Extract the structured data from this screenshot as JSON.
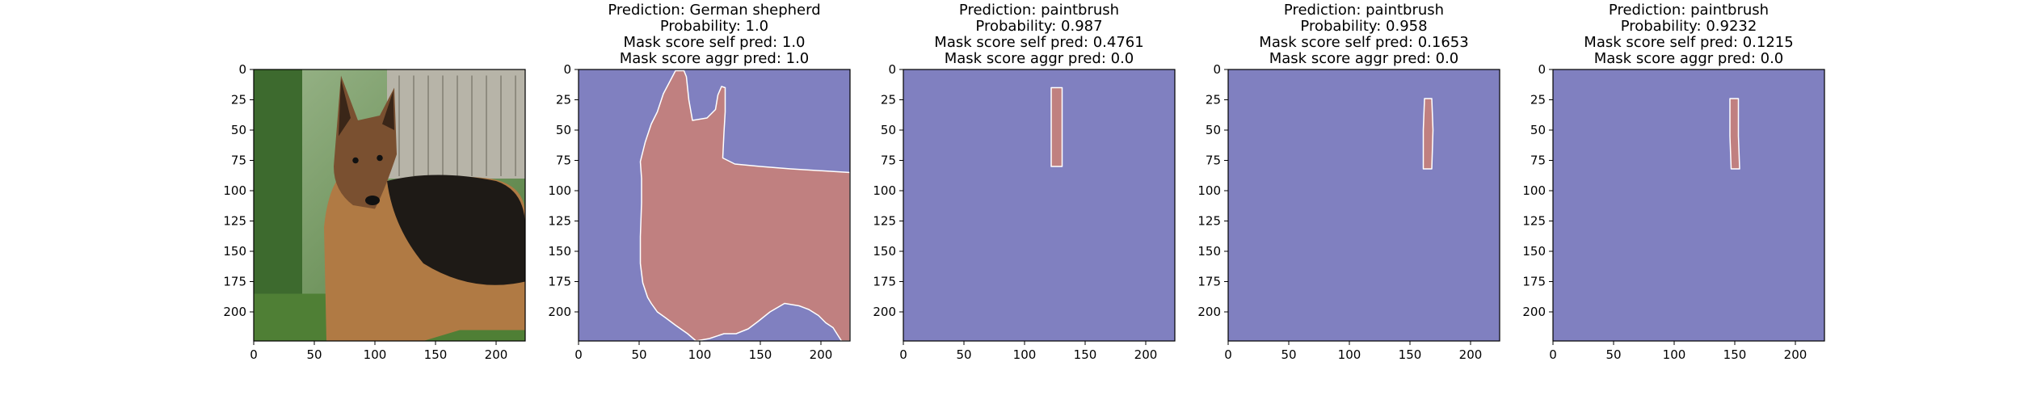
{
  "chart_data": [
    {
      "type": "image",
      "image_content": "dog-photo",
      "title_lines": [],
      "xlim": [
        0,
        224
      ],
      "ylim": [
        224,
        0
      ],
      "xticks": [
        "0",
        "50",
        "100",
        "150",
        "200"
      ],
      "yticks": [
        "0",
        "25",
        "50",
        "75",
        "100",
        "125",
        "150",
        "175",
        "200"
      ]
    },
    {
      "type": "heatmap",
      "title_lines": [
        "Prediction: German shepherd",
        "Probability: 1.0",
        "Mask score self pred: 1.0",
        "Mask score aggr pred: 1.0"
      ],
      "xlim": [
        0,
        224
      ],
      "ylim": [
        224,
        0
      ],
      "xticks": [
        "0",
        "50",
        "100",
        "150",
        "200"
      ],
      "yticks": [
        "0",
        "25",
        "50",
        "75",
        "100",
        "125",
        "150",
        "175",
        "200"
      ],
      "mask_polygon": [
        [
          80,
          1
        ],
        [
          87,
          1
        ],
        [
          89,
          6
        ],
        [
          91,
          25
        ],
        [
          94,
          42
        ],
        [
          106,
          40
        ],
        [
          113,
          33
        ],
        [
          115,
          21
        ],
        [
          118,
          14
        ],
        [
          121,
          15
        ],
        [
          121,
          35
        ],
        [
          120,
          52
        ],
        [
          119,
          73
        ],
        [
          129,
          78
        ],
        [
          150,
          80
        ],
        [
          175,
          82
        ],
        [
          224,
          85
        ],
        [
          224,
          224
        ],
        [
          217,
          224
        ],
        [
          210,
          213
        ],
        [
          204,
          209
        ],
        [
          198,
          203
        ],
        [
          190,
          198
        ],
        [
          182,
          195
        ],
        [
          170,
          193
        ],
        [
          158,
          200
        ],
        [
          148,
          208
        ],
        [
          140,
          214
        ],
        [
          130,
          218
        ],
        [
          120,
          218
        ],
        [
          108,
          222
        ],
        [
          97,
          224
        ],
        [
          90,
          218
        ],
        [
          80,
          211
        ],
        [
          72,
          205
        ],
        [
          65,
          200
        ],
        [
          60,
          193
        ],
        [
          57,
          188
        ],
        [
          53,
          176
        ],
        [
          51,
          160
        ],
        [
          51,
          138
        ],
        [
          52,
          110
        ],
        [
          52,
          90
        ],
        [
          51,
          76
        ],
        [
          55,
          60
        ],
        [
          60,
          45
        ],
        [
          65,
          35
        ],
        [
          70,
          20
        ]
      ],
      "colors": {
        "background": "#8080c0",
        "mask": "#c08080",
        "mask_edge": "#ffffff"
      }
    },
    {
      "type": "heatmap",
      "title_lines": [
        "Prediction: paintbrush",
        "Probability: 0.987",
        "Mask score self pred: 0.4761",
        "Mask score aggr pred: 0.0"
      ],
      "xlim": [
        0,
        224
      ],
      "ylim": [
        224,
        0
      ],
      "xticks": [
        "0",
        "50",
        "100",
        "150",
        "200"
      ],
      "yticks": [
        "0",
        "25",
        "50",
        "75",
        "100",
        "125",
        "150",
        "175",
        "200"
      ],
      "mask_polygon": [
        [
          122,
          15
        ],
        [
          131,
          15
        ],
        [
          131,
          80
        ],
        [
          122,
          80
        ]
      ],
      "colors": {
        "background": "#8080c0",
        "mask": "#c08080",
        "mask_edge": "#ffffff"
      }
    },
    {
      "type": "heatmap",
      "title_lines": [
        "Prediction: paintbrush",
        "Probability: 0.958",
        "Mask score self pred: 0.1653",
        "Mask score aggr pred: 0.0"
      ],
      "xlim": [
        0,
        224
      ],
      "ylim": [
        224,
        0
      ],
      "xticks": [
        "0",
        "50",
        "100",
        "150",
        "200"
      ],
      "yticks": [
        "0",
        "25",
        "50",
        "75",
        "100",
        "125",
        "150",
        "175",
        "200"
      ],
      "mask_polygon": [
        [
          162,
          24
        ],
        [
          168,
          24
        ],
        [
          169,
          50
        ],
        [
          168,
          82
        ],
        [
          161,
          82
        ],
        [
          161,
          50
        ]
      ],
      "colors": {
        "background": "#8080c0",
        "mask": "#c08080",
        "mask_edge": "#ffffff"
      }
    },
    {
      "type": "heatmap",
      "title_lines": [
        "Prediction: paintbrush",
        "Probability: 0.9232",
        "Mask score self pred: 0.1215",
        "Mask score aggr pred: 0.0"
      ],
      "xlim": [
        0,
        224
      ],
      "ylim": [
        224,
        0
      ],
      "xticks": [
        "0",
        "50",
        "100",
        "150",
        "200"
      ],
      "yticks": [
        "0",
        "25",
        "50",
        "75",
        "100",
        "125",
        "150",
        "175",
        "200"
      ],
      "mask_polygon": [
        [
          146,
          24
        ],
        [
          153,
          24
        ],
        [
          153,
          55
        ],
        [
          154,
          82
        ],
        [
          147,
          82
        ],
        [
          146,
          55
        ]
      ],
      "colors": {
        "background": "#8080c0",
        "mask": "#c08080",
        "mask_edge": "#ffffff"
      }
    }
  ]
}
